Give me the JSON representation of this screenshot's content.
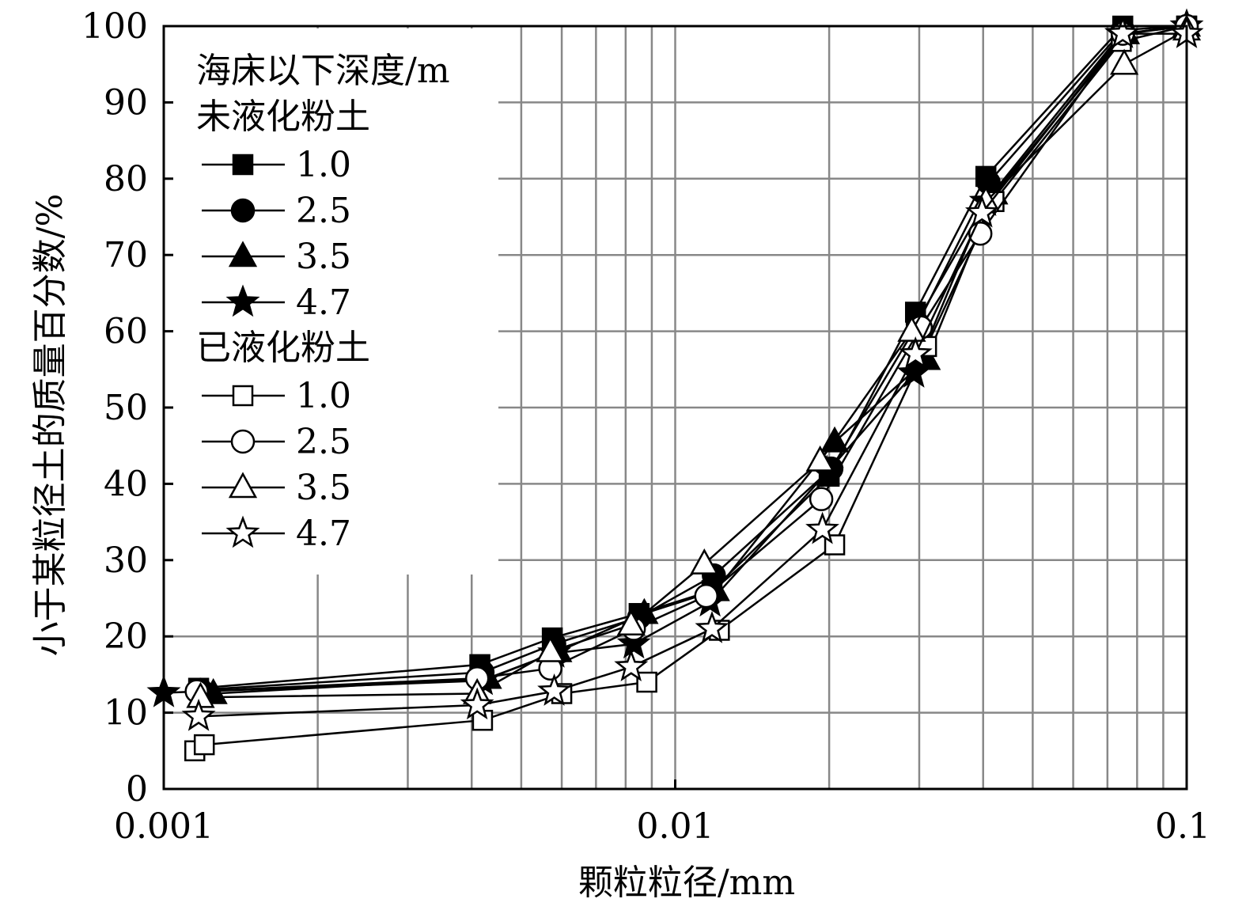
{
  "chart_data": {
    "type": "line",
    "xscale": "log",
    "xlim": [
      0.001,
      0.1
    ],
    "ylim": [
      0,
      100
    ],
    "grid": true,
    "legend_position": "top-left",
    "xlabel": "颗粒粒径/mm",
    "ylabel": "小于某粒径土的质量百分数/%",
    "x_tick_labels": [
      "0.001",
      "0.01",
      "0.1"
    ],
    "x_ticks": [
      0.001,
      0.01,
      0.1
    ],
    "y_ticks": [
      0,
      10,
      20,
      30,
      40,
      50,
      60,
      70,
      80,
      90,
      100
    ],
    "y_tick_labels": [
      "0",
      "10",
      "20",
      "30",
      "40",
      "50",
      "60",
      "70",
      "80",
      "90",
      "100"
    ],
    "legend_title": "海床以下深度/m",
    "legend_groups": [
      {
        "label": "未液化粉土",
        "series_indices": [
          0,
          1,
          2,
          3
        ]
      },
      {
        "label": "已液化粉土",
        "series_indices": [
          4,
          5,
          6,
          7
        ]
      }
    ],
    "series": [
      {
        "name": "1.0",
        "group": "未液化粉土",
        "marker": "square",
        "filled": true,
        "points": [
          [
            0.00117,
            13.2
          ],
          [
            0.00415,
            16.3
          ],
          [
            0.00575,
            19.8
          ],
          [
            0.0085,
            23.0
          ],
          [
            0.0118,
            26.0
          ],
          [
            0.02,
            41.0
          ],
          [
            0.0295,
            62.5
          ],
          [
            0.0405,
            80.3
          ],
          [
            0.075,
            100
          ],
          [
            0.1,
            100
          ]
        ]
      },
      {
        "name": "2.5",
        "group": "未液化粉土",
        "marker": "circle",
        "filled": true,
        "points": [
          [
            0.00118,
            13.0
          ],
          [
            0.0042,
            15.3
          ],
          [
            0.0058,
            19.0
          ],
          [
            0.0085,
            22.5
          ],
          [
            0.0119,
            28.0
          ],
          [
            0.0202,
            42.0
          ],
          [
            0.0298,
            61.0
          ],
          [
            0.041,
            79.5
          ],
          [
            0.075,
            99.5
          ],
          [
            0.1,
            100
          ]
        ]
      },
      {
        "name": "3.5",
        "group": "未液化粉土",
        "marker": "triangle",
        "filled": true,
        "points": [
          [
            0.00125,
            12.5
          ],
          [
            0.0043,
            14.5
          ],
          [
            0.0059,
            18.0
          ],
          [
            0.0087,
            23.0
          ],
          [
            0.012,
            26.0
          ],
          [
            0.0205,
            45.5
          ],
          [
            0.031,
            56.3
          ],
          [
            0.042,
            78.0
          ],
          [
            0.076,
            99.0
          ],
          [
            0.1,
            100
          ]
        ]
      },
      {
        "name": "4.7",
        "group": "未液化粉土",
        "marker": "star",
        "filled": true,
        "points": [
          [
            0.001,
            12.6
          ],
          [
            0.0042,
            14.2
          ],
          [
            0.0058,
            17.8
          ],
          [
            0.0083,
            19.0
          ],
          [
            0.0117,
            24.5
          ],
          [
            0.0198,
            41.5
          ],
          [
            0.0293,
            54.5
          ],
          [
            0.0405,
            77.0
          ],
          [
            0.0745,
            99.0
          ],
          [
            0.1,
            100
          ]
        ]
      },
      {
        "name": "1.0",
        "group": "已液化粉土",
        "marker": "square",
        "filled": false,
        "points": [
          [
            0.00115,
            5.0
          ],
          [
            0.0012,
            5.8
          ],
          [
            0.0042,
            9.0
          ],
          [
            0.006,
            12.5
          ],
          [
            0.0088,
            14.0
          ],
          [
            0.0122,
            20.8
          ],
          [
            0.0205,
            32.0
          ],
          [
            0.031,
            58.0
          ],
          [
            0.042,
            77.0
          ],
          [
            0.0745,
            98.0
          ],
          [
            0.1,
            100
          ]
        ]
      },
      {
        "name": "2.5",
        "group": "已液化粉土",
        "marker": "circle",
        "filled": false,
        "points": [
          [
            0.00116,
            12.8
          ],
          [
            0.0041,
            14.5
          ],
          [
            0.0057,
            15.8
          ],
          [
            0.0083,
            21.0
          ],
          [
            0.0115,
            25.3
          ],
          [
            0.0193,
            38.0
          ],
          [
            0.0302,
            60.5
          ],
          [
            0.0395,
            72.8
          ],
          [
            0.075,
            99.0
          ],
          [
            0.1,
            100
          ]
        ]
      },
      {
        "name": "3.5",
        "group": "已液化粉土",
        "marker": "triangle",
        "filled": false,
        "points": [
          [
            0.00118,
            12.0
          ],
          [
            0.0041,
            12.5
          ],
          [
            0.0057,
            18.0
          ],
          [
            0.0082,
            21.5
          ],
          [
            0.0114,
            29.5
          ],
          [
            0.0192,
            43.0
          ],
          [
            0.029,
            60.0
          ],
          [
            0.0405,
            77.0
          ],
          [
            0.0755,
            95.0
          ],
          [
            0.1,
            99.5
          ]
        ]
      },
      {
        "name": "4.7",
        "group": "已液化粉土",
        "marker": "star",
        "filled": false,
        "points": [
          [
            0.00117,
            9.5
          ],
          [
            0.0041,
            11.0
          ],
          [
            0.0058,
            12.8
          ],
          [
            0.0082,
            16.0
          ],
          [
            0.0118,
            21.0
          ],
          [
            0.0194,
            34.0
          ],
          [
            0.0295,
            57.0
          ],
          [
            0.0398,
            75.5
          ],
          [
            0.075,
            99.0
          ],
          [
            0.1,
            99.0
          ]
        ]
      }
    ]
  }
}
